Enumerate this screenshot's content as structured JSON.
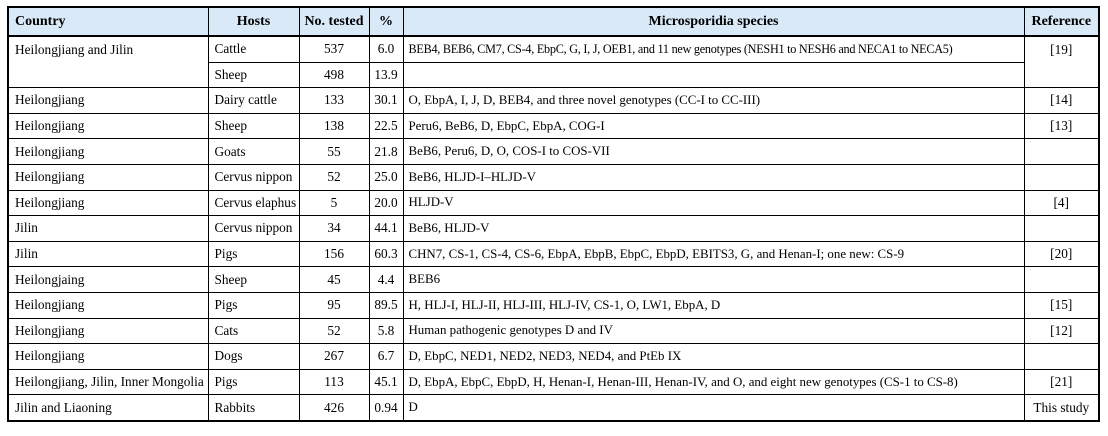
{
  "colors": {
    "header_bg": "#d9e9f8",
    "border": "#000000",
    "page_bg": "#ffffff"
  },
  "table": {
    "columns": {
      "country": "Country",
      "hosts": "Hosts",
      "tested": "No. tested",
      "pct": "%",
      "species": "Microsporidia species",
      "reference": "Reference"
    },
    "rows": [
      {
        "country": "Heilongjiang and Jilin",
        "host": "Cattle",
        "tested": "537",
        "pct": "6.0",
        "species": "BEB4, BEB6, CM7, CS-4, EbpC, G, I, J, OEB1, and 11 new genotypes (NESH1 to NESH6 and NECA1 to NECA5)",
        "reference": "[19]"
      },
      {
        "country": "",
        "host": "Sheep",
        "tested": "498",
        "pct": "13.9",
        "species": "",
        "reference": ""
      },
      {
        "country": "Heilongjiang",
        "host": "Dairy cattle",
        "tested": "133",
        "pct": "30.1",
        "species": "O, EbpA, I, J, D, BEB4, and three novel genotypes (CC-I to CC-III)",
        "reference": "[14]"
      },
      {
        "country": "Heilongjiang",
        "host": "Sheep",
        "tested": "138",
        "pct": "22.5",
        "species": "Peru6, BeB6, D, EbpC, EbpA, COG-I",
        "reference": "[13]"
      },
      {
        "country": "Heilongjiang",
        "host": "Goats",
        "tested": "55",
        "pct": "21.8",
        "species": "BeB6, Peru6, D, O, COS-I to COS-VII",
        "reference": ""
      },
      {
        "country": "Heilongjiang",
        "host": "Cervus nippon",
        "tested": "52",
        "pct": "25.0",
        "species": "BeB6, HLJD-I–HLJD-V",
        "reference": ""
      },
      {
        "country": "Heilongjiang",
        "host": "Cervus elaphus",
        "tested": "5",
        "pct": "20.0",
        "species": "HLJD-V",
        "reference": "[4]"
      },
      {
        "country": "Jilin",
        "host": "Cervus nippon",
        "tested": "34",
        "pct": "44.1",
        "species": "BeB6, HLJD-V",
        "reference": ""
      },
      {
        "country": "Jilin",
        "host": "Pigs",
        "tested": "156",
        "pct": "60.3",
        "species": "CHN7, CS-1, CS-4, CS-6, EbpA, EbpB, EbpC, EbpD, EBITS3, G, and Henan-I; one new: CS-9",
        "reference": "[20]"
      },
      {
        "country": "Heilongjaing",
        "host": "Sheep",
        "tested": "45",
        "pct": "4.4",
        "species": "BEB6",
        "reference": ""
      },
      {
        "country": "Heilongjiang",
        "host": "Pigs",
        "tested": "95",
        "pct": "89.5",
        "species": "H, HLJ-I, HLJ-II, HLJ-III, HLJ-IV, CS-1, O, LW1, EbpA, D",
        "reference": "[15]"
      },
      {
        "country": "Heilongjiang",
        "host": "Cats",
        "tested": "52",
        "pct": "5.8",
        "species": "Human pathogenic genotypes D and IV",
        "reference": "[12]"
      },
      {
        "country": "Heilongjiang",
        "host": "Dogs",
        "tested": "267",
        "pct": "6.7",
        "species": "D, EbpC, NED1, NED2, NED3, NED4, and PtEb IX",
        "reference": ""
      },
      {
        "country": "Heilongjiang, Jilin, Inner Mongolia",
        "host": "Pigs",
        "tested": "113",
        "pct": "45.1",
        "species": "D, EbpA, EbpC, EbpD, H, Henan-I, Henan-III, Henan-IV, and O, and eight new genotypes (CS-1 to CS-8)",
        "reference": "[21]"
      },
      {
        "country": "Jilin and Liaoning",
        "host": "Rabbits",
        "tested": "426",
        "pct": "0.94",
        "species": "D",
        "reference": "This study"
      }
    ]
  }
}
